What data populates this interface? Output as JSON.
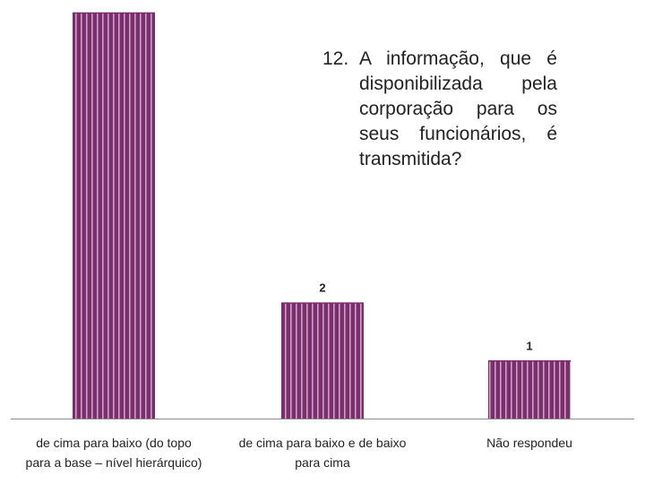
{
  "chart_data": {
    "type": "bar",
    "title_number": "12.",
    "title": "A informação, que é disponibilizada pela corporação para os seus funcionários, é transmitida?",
    "categories": [
      [
        "de cima para baixo (do topo",
        "para a base – nível hierárquico)"
      ],
      [
        "de cima para baixo e de baixo",
        "para cima"
      ],
      [
        "Não respondeu"
      ]
    ],
    "values": [
      7,
      2,
      1
    ],
    "data_labels": [
      "",
      "2",
      "1"
    ],
    "ylim": [
      0,
      7
    ],
    "grid": false,
    "legend": "none",
    "colors": {
      "bar_fill": "#7b2d6e",
      "bar_stripe": "#c9a3c2",
      "axis": "#8c8c8c",
      "text": "#222222"
    }
  }
}
